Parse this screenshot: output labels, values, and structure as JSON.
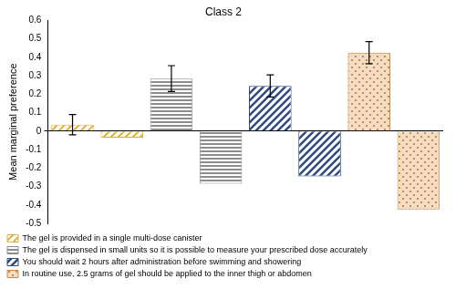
{
  "chart_data": {
    "type": "bar",
    "title": "Class 2",
    "y_label": "Mean marginal preference",
    "categories": [
      null,
      null,
      null,
      null,
      null,
      null,
      null,
      null
    ],
    "series": [
      {
        "name": "The gel is provided in a single multi-dose canister",
        "color": "#e0b341",
        "values": [
          0.035,
          -0.035,
          null,
          null,
          null,
          null,
          null,
          null
        ],
        "errors": [
          0.055,
          null,
          null,
          null,
          null,
          null,
          null,
          null
        ]
      },
      {
        "name": "The gel is dispensed in small units so it is possible to measure your prescribed dose accurately",
        "color": "#8c8c8c",
        "values": [
          null,
          null,
          0.285,
          -0.285,
          null,
          null,
          null,
          null
        ],
        "errors": [
          null,
          null,
          0.07,
          null,
          null,
          null,
          null,
          null
        ]
      },
      {
        "name": "You should wait 2 hours after administration before swimming and showering",
        "color": "#2f4b7c",
        "values": [
          null,
          null,
          null,
          null,
          0.245,
          -0.245,
          null,
          null
        ],
        "errors": [
          null,
          null,
          null,
          null,
          0.06,
          null,
          null,
          null
        ]
      },
      {
        "name": "In routine use, 2.5 grams of gel should be applied to the inner thigh or abdomen",
        "color": "#c98a4a",
        "values": [
          null,
          null,
          null,
          null,
          null,
          null,
          0.425,
          -0.425
        ],
        "errors": [
          null,
          null,
          null,
          null,
          null,
          null,
          0.06,
          null
        ]
      }
    ],
    "ylim": [
      -0.5,
      0.6
    ],
    "yticks": [
      -0.5,
      -0.4,
      -0.3,
      -0.2,
      -0.1,
      0,
      0.1,
      0.2,
      0.3,
      0.4,
      0.5,
      0.6
    ],
    "grid": false,
    "legend": "bottom",
    "tick_labels": "y"
  }
}
